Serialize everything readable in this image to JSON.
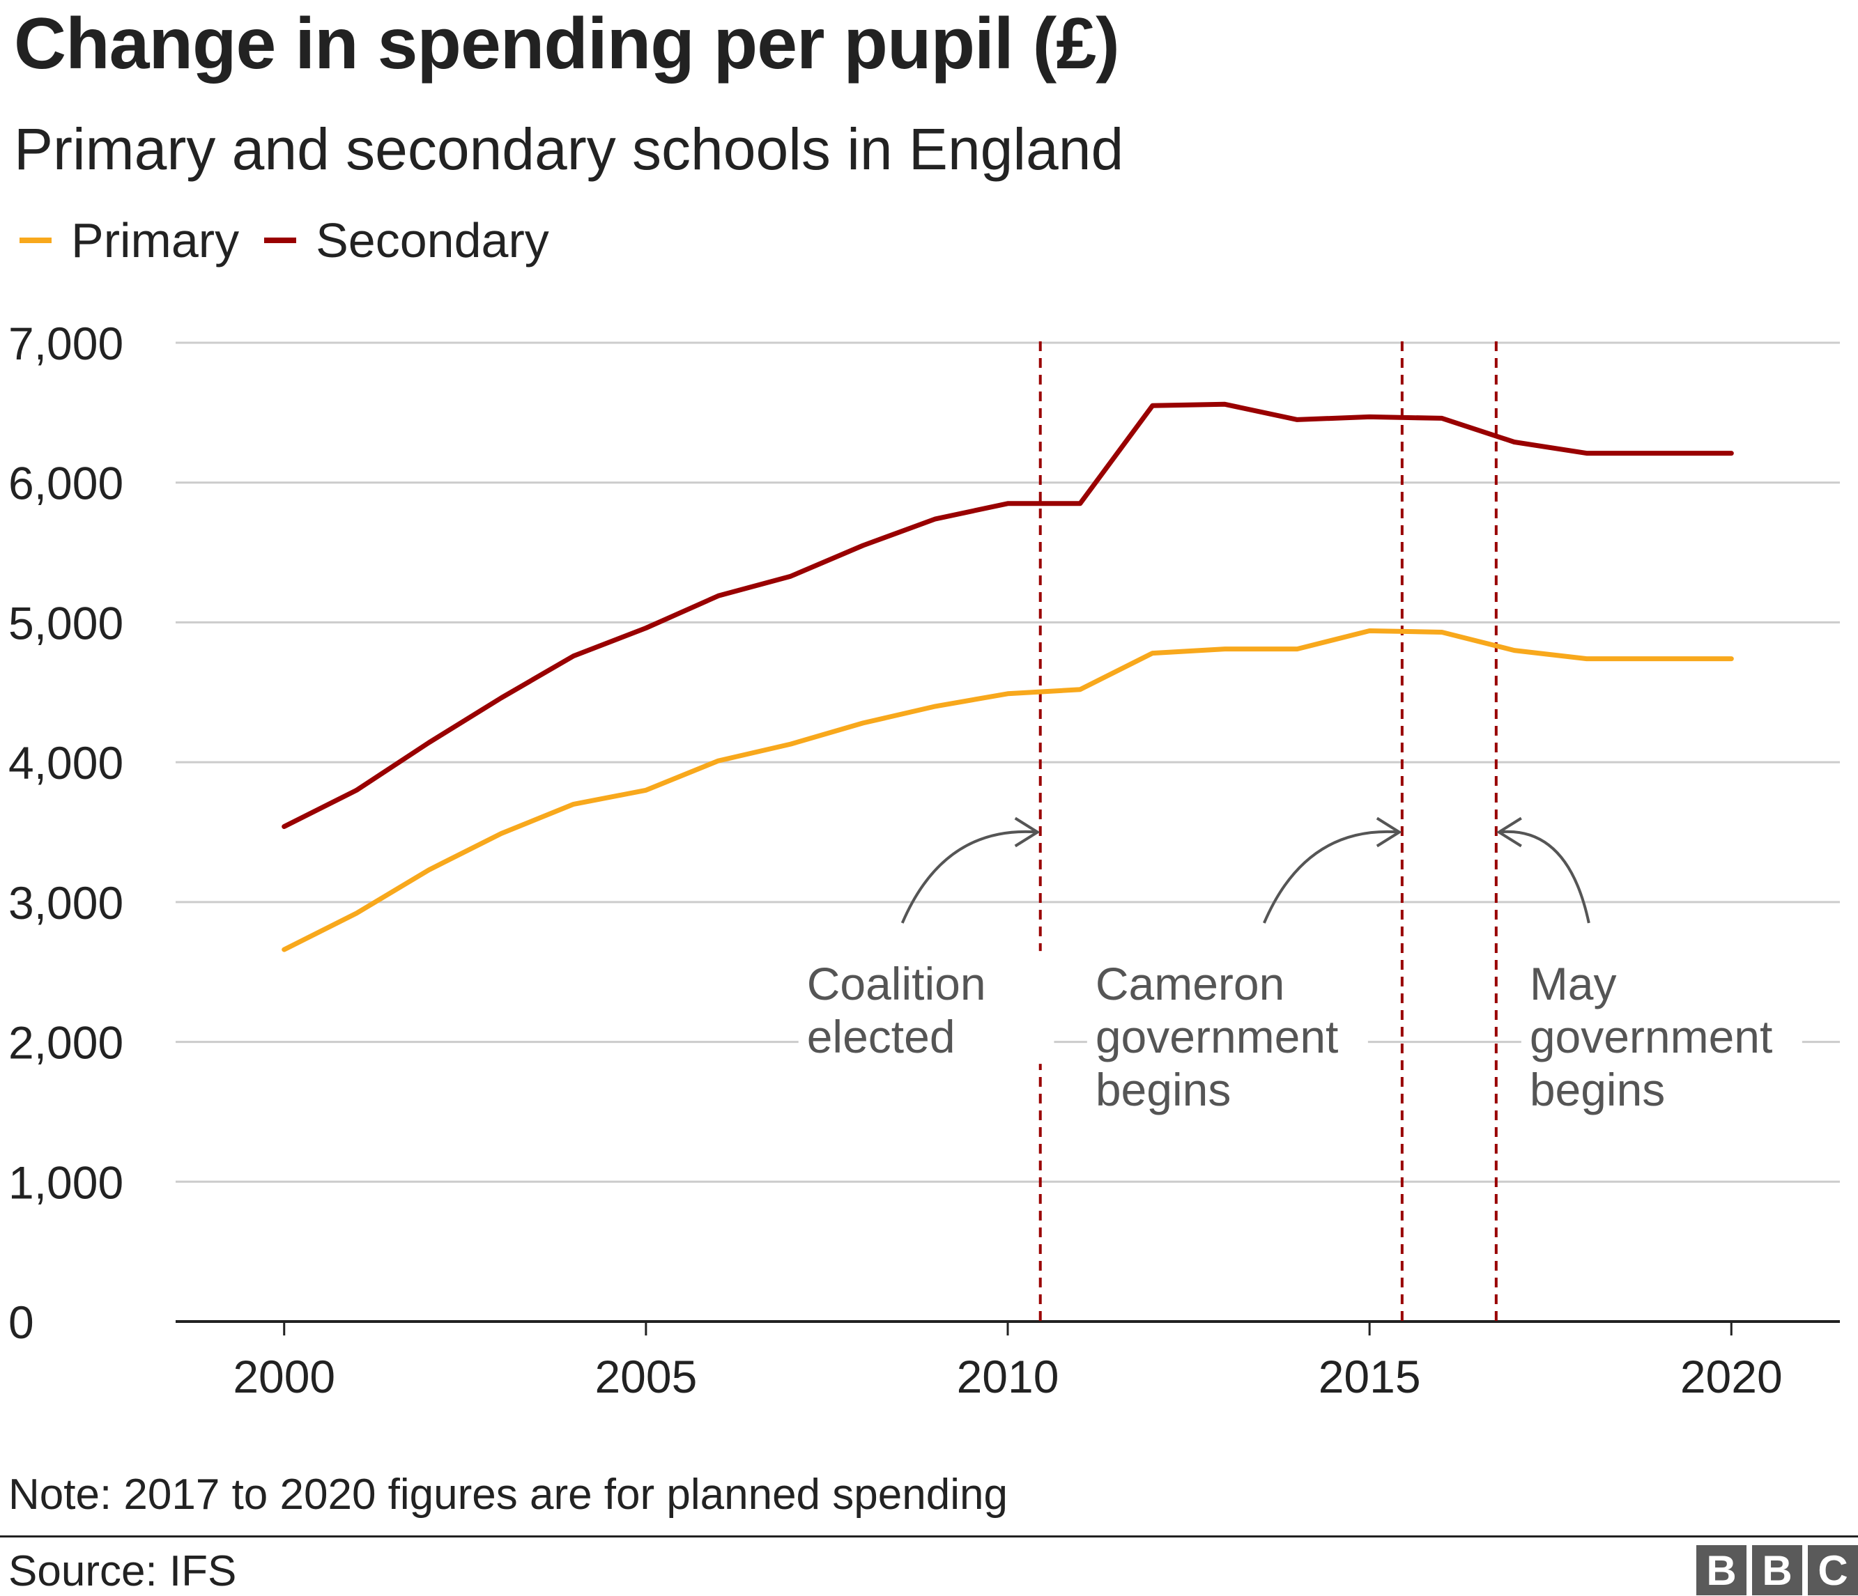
{
  "chart_data": {
    "type": "line",
    "title": "Change in spending per pupil (£)",
    "subtitle": "Primary and secondary schools in England",
    "xlabel": "",
    "ylabel": "",
    "x": [
      2000,
      2001,
      2002,
      2003,
      2004,
      2005,
      2006,
      2007,
      2008,
      2009,
      2010,
      2011,
      2012,
      2013,
      2014,
      2015,
      2016,
      2017,
      2018,
      2019,
      2020
    ],
    "series": [
      {
        "name": "Primary",
        "color": "#f8a81c",
        "values": [
          2660,
          2920,
          3230,
          3490,
          3700,
          3800,
          4010,
          4130,
          4280,
          4400,
          4490,
          4520,
          4780,
          4810,
          4810,
          4940,
          4930,
          4800,
          4740,
          4740,
          4740
        ]
      },
      {
        "name": "Secondary",
        "color": "#990000",
        "values": [
          3540,
          3800,
          4140,
          4460,
          4760,
          4960,
          5190,
          5330,
          5550,
          5740,
          5850,
          5850,
          6550,
          6560,
          6450,
          6470,
          6460,
          6290,
          6210,
          6210,
          6210
        ]
      }
    ],
    "ylim": [
      0,
      7000
    ],
    "xlim": [
      1998.5,
      2021.5
    ],
    "yticks": [
      0,
      1000,
      2000,
      3000,
      4000,
      5000,
      6000,
      7000
    ],
    "ytick_labels": [
      "0",
      "1,000",
      "2,000",
      "3,000",
      "4,000",
      "5,000",
      "6,000",
      "7,000"
    ],
    "xticks": [
      2000,
      2005,
      2010,
      2015,
      2020
    ],
    "xtick_labels": [
      "2000",
      "2005",
      "2010",
      "2015",
      "2020"
    ],
    "grid": true,
    "legend": "top-left",
    "annotations": [
      {
        "x": 2010.45,
        "lines": [
          "Coalition",
          "elected"
        ],
        "label_side": "left",
        "arrow_from": "below-left"
      },
      {
        "x": 2015.45,
        "lines": [
          "Cameron",
          "government",
          "begins"
        ],
        "label_side": "left",
        "arrow_from": "below-left"
      },
      {
        "x": 2016.75,
        "lines": [
          "May",
          "government",
          "begins"
        ],
        "label_side": "right",
        "arrow_from": "below-right"
      }
    ],
    "event_line_color": "#990000"
  },
  "note": "Note: 2017 to 2020 figures are for planned spending",
  "source": "Source: IFS",
  "logo": {
    "letters": [
      "B",
      "B",
      "C"
    ]
  }
}
